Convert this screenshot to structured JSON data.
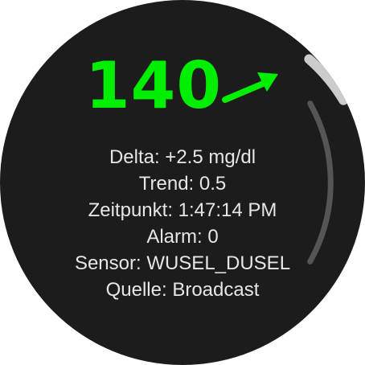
{
  "reading": {
    "value": "140",
    "color": "#00ee00",
    "trend_icon": "arrow-up-right-icon"
  },
  "info": {
    "delta": "Delta: +2.5 mg/dl",
    "trend": "Trend: 0.5",
    "time": "Zeitpunkt: 1:47:14 PM",
    "alarm": "Alarm: 0",
    "sensor": "Sensor: WUSEL_DUSEL",
    "source": "Quelle: Broadcast"
  },
  "scroll": {
    "thumb_color": "#cccccc",
    "track_color": "#555555",
    "position": 0.0
  },
  "colors": {
    "background": "#1c1c1c",
    "text": "#e6e6e6"
  }
}
